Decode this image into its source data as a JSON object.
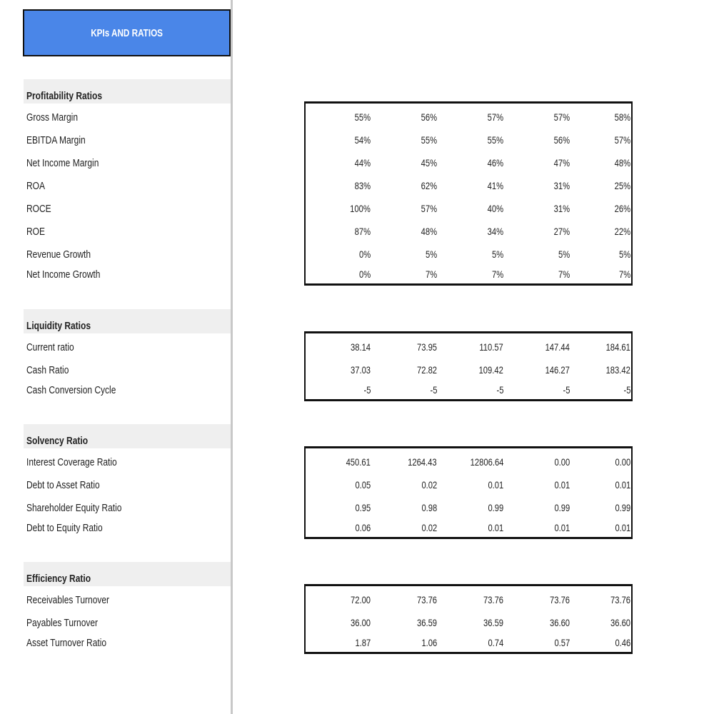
{
  "title": "KPIs AND RATIOS",
  "colors": {
    "title_bg": "#4a86e8",
    "section_bg": "#efefef"
  },
  "sections": [
    {
      "header": "Profitability Ratios",
      "rows": [
        {
          "label": "Gross Margin",
          "values": [
            "55%",
            "56%",
            "57%",
            "57%",
            "58%"
          ]
        },
        {
          "label": "EBITDA Margin",
          "values": [
            "54%",
            "55%",
            "55%",
            "56%",
            "57%"
          ]
        },
        {
          "label": "Net Income Margin",
          "values": [
            "44%",
            "45%",
            "46%",
            "47%",
            "48%"
          ]
        },
        {
          "label": "ROA",
          "values": [
            "83%",
            "62%",
            "41%",
            "31%",
            "25%"
          ]
        },
        {
          "label": "ROCE",
          "values": [
            "100%",
            "57%",
            "40%",
            "31%",
            "26%"
          ]
        },
        {
          "label": "ROE",
          "values": [
            "87%",
            "48%",
            "34%",
            "27%",
            "22%"
          ]
        },
        {
          "label": "Revenue Growth",
          "values": [
            "0%",
            "5%",
            "5%",
            "5%",
            "5%"
          ]
        },
        {
          "label": "Net Income Growth",
          "values": [
            "0%",
            "7%",
            "7%",
            "7%",
            "7%"
          ]
        }
      ]
    },
    {
      "header": "Liquidity Ratios",
      "rows": [
        {
          "label": "Current ratio",
          "values": [
            "38.14",
            "73.95",
            "110.57",
            "147.44",
            "184.61"
          ]
        },
        {
          "label": "Cash Ratio",
          "values": [
            "37.03",
            "72.82",
            "109.42",
            "146.27",
            "183.42"
          ]
        },
        {
          "label": "Cash Conversion Cycle",
          "values": [
            "-5",
            "-5",
            "-5",
            "-5",
            "-5"
          ]
        }
      ]
    },
    {
      "header": "Solvency Ratio",
      "rows": [
        {
          "label": "Interest Coverage Ratio",
          "values": [
            "450.61",
            "1264.43",
            "12806.64",
            "0.00",
            "0.00"
          ]
        },
        {
          "label": "Debt to Asset Ratio",
          "values": [
            "0.05",
            "0.02",
            "0.01",
            "0.01",
            "0.01"
          ]
        },
        {
          "label": "Shareholder Equity Ratio",
          "values": [
            "0.95",
            "0.98",
            "0.99",
            "0.99",
            "0.99"
          ]
        },
        {
          "label": "Debt to Equity Ratio",
          "values": [
            "0.06",
            "0.02",
            "0.01",
            "0.01",
            "0.01"
          ]
        }
      ]
    },
    {
      "header": "Efficiency Ratio",
      "rows": [
        {
          "label": "Receivables Turnover",
          "values": [
            "72.00",
            "73.76",
            "73.76",
            "73.76",
            "73.76"
          ]
        },
        {
          "label": "Payables Turnover",
          "values": [
            "36.00",
            "36.59",
            "36.59",
            "36.60",
            "36.60"
          ]
        },
        {
          "label": "Asset Turnover Ratio",
          "values": [
            "1.87",
            "1.06",
            "0.74",
            "0.57",
            "0.46"
          ]
        }
      ]
    }
  ]
}
